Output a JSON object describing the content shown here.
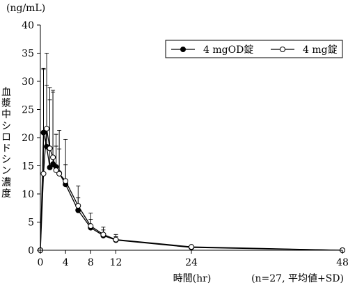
{
  "chart_data": {
    "type": "line",
    "unit_label": "(ng/mL)",
    "ylabel": "血漿中シロドシン濃度",
    "xlabel": "時間(hr)",
    "note": "(n=27, 平均値+SD)",
    "x_ticks": [
      0,
      4,
      8,
      12,
      24,
      48
    ],
    "y_ticks": [
      0,
      5,
      10,
      15,
      20,
      25,
      30,
      35,
      40
    ],
    "xlim": [
      0,
      48
    ],
    "ylim": [
      0,
      40
    ],
    "legend_position": "top-right",
    "series": [
      {
        "name": "4 mgOD錠",
        "marker": "filled-circle",
        "x": [
          0,
          0.5,
          1,
          1.5,
          2,
          2.5,
          3,
          4,
          6,
          8,
          10,
          12,
          24,
          48
        ],
        "y": [
          0,
          20.9,
          18.4,
          14.7,
          15.3,
          14.8,
          13.7,
          11.7,
          7.1,
          4.0,
          2.6,
          1.8,
          0.5,
          0.0
        ],
        "sd_upper": [
          0,
          32.1,
          29.3,
          26.7,
          28.1,
          18.5,
          18.0,
          15.2,
          9.3,
          5.5,
          3.6,
          2.4,
          0.8,
          0.0
        ]
      },
      {
        "name": "4 mg錠",
        "marker": "open-circle",
        "x": [
          0,
          0.5,
          1,
          1.5,
          2,
          2.5,
          3,
          4,
          6,
          8,
          10,
          12,
          24,
          48
        ],
        "y": [
          0,
          13.6,
          21.6,
          18.1,
          16.5,
          14.2,
          13.6,
          12.3,
          7.9,
          4.3,
          2.8,
          1.9,
          0.6,
          0.0
        ],
        "sd_upper": [
          0,
          32.3,
          35.0,
          28.9,
          28.4,
          20.6,
          21.3,
          19.7,
          11.4,
          6.6,
          4.1,
          2.8,
          0.9,
          0.0
        ]
      }
    ]
  }
}
